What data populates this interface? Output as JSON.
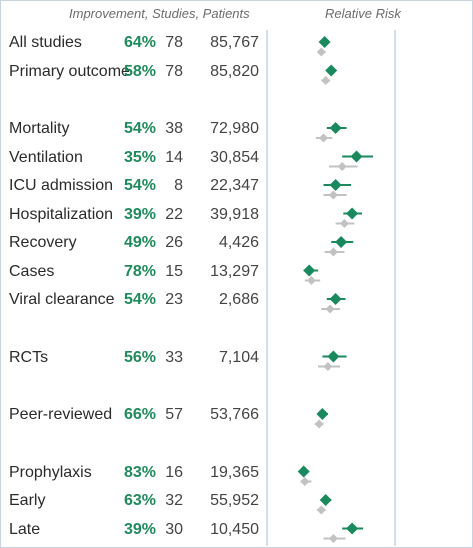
{
  "header": {
    "left": "Improvement, Studies, Patients",
    "right": "Relative Risk"
  },
  "colors": {
    "improvement": "#1f8a5b",
    "marker": "#1a8a5e",
    "marker_secondary": "#c2c2c2",
    "divider": "#c9d3df"
  },
  "chart_data": {
    "type": "forest",
    "rows": [
      {
        "label": "All studies",
        "improvement": "64%",
        "studies": "78",
        "patients": "85,767",
        "rr": 0.36,
        "ci": [
          0.33,
          0.4
        ],
        "rr2": 0.33,
        "ci2": [
          0.3,
          0.37
        ]
      },
      {
        "label": "Primary outcome",
        "improvement": "58%",
        "studies": "78",
        "patients": "85,820",
        "rr": 0.42,
        "ci": [
          0.39,
          0.46
        ],
        "rr2": 0.37,
        "ci2": [
          0.33,
          0.41
        ]
      },
      {
        "label": "Mortality",
        "improvement": "54%",
        "studies": "38",
        "patients": "72,980",
        "rr": 0.46,
        "ci": [
          0.38,
          0.56
        ],
        "rr2": 0.35,
        "ci2": [
          0.28,
          0.43
        ]
      },
      {
        "label": "Ventilation",
        "improvement": "35%",
        "studies": "14",
        "patients": "30,854",
        "rr": 0.65,
        "ci": [
          0.52,
          0.8
        ],
        "rr2": 0.52,
        "ci2": [
          0.4,
          0.66
        ]
      },
      {
        "label": "ICU admission",
        "improvement": "54%",
        "studies": "8",
        "patients": "22,347",
        "rr": 0.46,
        "ci": [
          0.35,
          0.6
        ],
        "rr2": 0.44,
        "ci2": [
          0.35,
          0.56
        ]
      },
      {
        "label": "Hospitalization",
        "improvement": "39%",
        "studies": "22",
        "patients": "39,918",
        "rr": 0.61,
        "ci": [
          0.53,
          0.7
        ],
        "rr2": 0.54,
        "ci2": [
          0.46,
          0.63
        ]
      },
      {
        "label": "Recovery",
        "improvement": "49%",
        "studies": "26",
        "patients": "4,426",
        "rr": 0.51,
        "ci": [
          0.42,
          0.62
        ],
        "rr2": 0.44,
        "ci2": [
          0.36,
          0.54
        ]
      },
      {
        "label": "Cases",
        "improvement": "78%",
        "studies": "15",
        "patients": "13,297",
        "rr": 0.22,
        "ci": [
          0.17,
          0.3
        ],
        "rr2": 0.24,
        "ci2": [
          0.18,
          0.32
        ]
      },
      {
        "label": "Viral clearance",
        "improvement": "54%",
        "studies": "23",
        "patients": "2,686",
        "rr": 0.46,
        "ci": [
          0.38,
          0.55
        ],
        "rr2": 0.41,
        "ci2": [
          0.33,
          0.5
        ]
      },
      {
        "label": "RCTs",
        "improvement": "56%",
        "studies": "33",
        "patients": "7,104",
        "rr": 0.44,
        "ci": [
          0.34,
          0.56
        ],
        "rr2": 0.39,
        "ci2": [
          0.3,
          0.5
        ]
      },
      {
        "label": "Peer-reviewed",
        "improvement": "66%",
        "studies": "57",
        "patients": "53,766",
        "rr": 0.34,
        "ci": [
          0.3,
          0.39
        ],
        "rr2": 0.31,
        "ci2": [
          0.27,
          0.35
        ]
      },
      {
        "label": "Prophylaxis",
        "improvement": "83%",
        "studies": "16",
        "patients": "19,365",
        "rr": 0.17,
        "ci": [
          0.14,
          0.22
        ],
        "rr2": 0.18,
        "ci2": [
          0.14,
          0.24
        ]
      },
      {
        "label": "Early",
        "improvement": "63%",
        "studies": "32",
        "patients": "55,952",
        "rr": 0.37,
        "ci": [
          0.33,
          0.42
        ],
        "rr2": 0.33,
        "ci2": [
          0.29,
          0.37
        ]
      },
      {
        "label": "Late",
        "improvement": "39%",
        "studies": "30",
        "patients": "10,450",
        "rr": 0.61,
        "ci": [
          0.52,
          0.71
        ],
        "rr2": 0.44,
        "ci2": [
          0.35,
          0.55
        ]
      }
    ],
    "groups": [
      [
        0,
        1
      ],
      [
        2,
        3,
        4,
        5,
        6,
        7,
        8
      ],
      [
        9
      ],
      [
        10
      ],
      [
        11,
        12,
        13
      ]
    ],
    "xlim": [
      0,
      1
    ],
    "reference_line": 1
  }
}
